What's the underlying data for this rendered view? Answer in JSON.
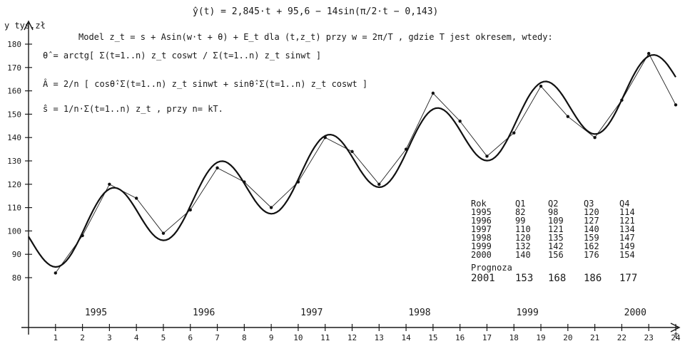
{
  "formulas": {
    "title": "ŷ(t) = 2,845·t + 95,6 − 14sin(π/2·t − 0,143)",
    "model": "Model  z_t = s + Asin(w·t + θ) + E_t  dla (t,z_t) przy w = 2π/T , gdzie T jest okresem, wtedy:",
    "theta": "θ̂ = arctg[ Σ(t=1..n) z_t coswt / Σ(t=1..n) z_t sinwt ]",
    "amplitude": "Â = 2/n [ cosθ̂·Σ(t=1..n) z_t sinwt + sinθ̂·Σ(t=1..n) z_t coswt ]",
    "mean": "ŝ = 1/n·Σ(t=1..n) z_t , przy n= kT."
  },
  "table": {
    "headers": [
      "Rok",
      "Q1",
      "Q2",
      "Q3",
      "Q4"
    ],
    "rows": [
      [
        "1995",
        "82",
        "98",
        "120",
        "114"
      ],
      [
        "1996",
        "99",
        "109",
        "127",
        "121"
      ],
      [
        "1997",
        "110",
        "121",
        "140",
        "134"
      ],
      [
        "1998",
        "120",
        "135",
        "159",
        "147"
      ],
      [
        "1999",
        "132",
        "142",
        "162",
        "149"
      ],
      [
        "2000",
        "140",
        "156",
        "176",
        "154"
      ]
    ],
    "forecast_label": "Prognoza",
    "forecast_row": [
      "2001",
      "153",
      "168",
      "186",
      "177"
    ]
  },
  "chart_data": {
    "type": "line",
    "ylabel": "y  tys.zł",
    "xlabel": "t",
    "xlim": [
      0,
      24
    ],
    "ylim": [
      80,
      180
    ],
    "x_ticks": [
      1,
      2,
      3,
      4,
      5,
      6,
      7,
      8,
      9,
      10,
      11,
      12,
      13,
      14,
      15,
      16,
      17,
      18,
      19,
      20,
      21,
      22,
      23,
      24
    ],
    "y_ticks": [
      80,
      90,
      100,
      110,
      120,
      130,
      140,
      150,
      160,
      170,
      180
    ],
    "year_labels": [
      {
        "label": "1995",
        "x": 2.5
      },
      {
        "label": "1996",
        "x": 6.5
      },
      {
        "label": "1997",
        "x": 10.5
      },
      {
        "label": "1998",
        "x": 14.5
      },
      {
        "label": "1999",
        "x": 18.5
      },
      {
        "label": "2000",
        "x": 22.5
      }
    ],
    "series": [
      {
        "values_x": [
          1,
          2,
          3,
          4,
          5,
          6,
          7,
          8,
          9,
          10,
          11,
          12,
          13,
          14,
          15,
          16,
          17,
          18,
          19,
          20,
          21,
          22,
          23,
          24
        ],
        "values": [
          82,
          98,
          120,
          114,
          99,
          109,
          127,
          121,
          110,
          121,
          140,
          134,
          120,
          135,
          159,
          147,
          132,
          142,
          162,
          149,
          140,
          156,
          176,
          154
        ],
        "style": "thin-with-points"
      },
      {
        "formula": {
          "a": 2.845,
          "b": 95.6,
          "amp": 14,
          "phase": 0.143
        },
        "x_range": [
          0,
          24
        ],
        "style": "bold-smooth"
      }
    ]
  }
}
